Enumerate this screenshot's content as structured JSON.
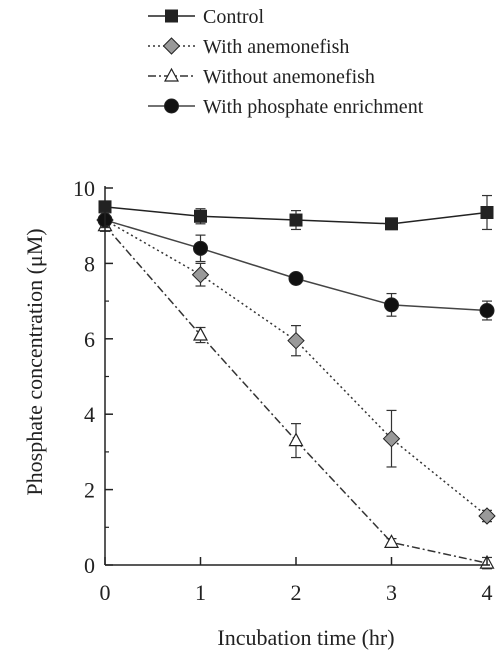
{
  "chart_data": {
    "type": "line",
    "xlabel": "Incubation time (hr)",
    "ylabel": "Phosphate concentration (μM)",
    "x": [
      0,
      1,
      2,
      3,
      4
    ],
    "xticks": [
      "0",
      "1",
      "2",
      "3",
      "4"
    ],
    "yticks": [
      "0",
      "2",
      "4",
      "6",
      "8",
      "10"
    ],
    "xlim": [
      0,
      4
    ],
    "ylim": [
      0,
      10
    ],
    "grid": false,
    "legend_position": "top",
    "series": [
      {
        "name": "Control",
        "marker": "square",
        "line_style": "solid",
        "color": "#222222",
        "marker_fill": "#222222",
        "values": [
          9.5,
          9.25,
          9.15,
          9.05,
          9.35
        ],
        "errors": [
          0.15,
          0.2,
          0.25,
          0.15,
          0.45
        ]
      },
      {
        "name": "With anemonefish",
        "marker": "diamond",
        "line_style": "dotted",
        "color": "#333333",
        "marker_fill": "#999999",
        "values": [
          9.15,
          7.7,
          5.95,
          3.35,
          1.3
        ],
        "errors": [
          0.2,
          0.3,
          0.4,
          0.75,
          0.15
        ]
      },
      {
        "name": "Without anemonefish",
        "marker": "triangle",
        "line_style": "dash-dot",
        "color": "#333333",
        "marker_fill": "#ffffff",
        "values": [
          9.0,
          6.1,
          3.3,
          0.6,
          0.05
        ],
        "errors": [
          0.15,
          0.2,
          0.45,
          0.1,
          0.15
        ]
      },
      {
        "name": "With phosphate enrichment",
        "marker": "circle",
        "line_style": "solid",
        "color": "#444444",
        "marker_fill": "#111111",
        "values": [
          9.15,
          8.4,
          7.6,
          6.9,
          6.75
        ],
        "errors": [
          0.2,
          0.35,
          0.1,
          0.3,
          0.25
        ]
      }
    ]
  }
}
